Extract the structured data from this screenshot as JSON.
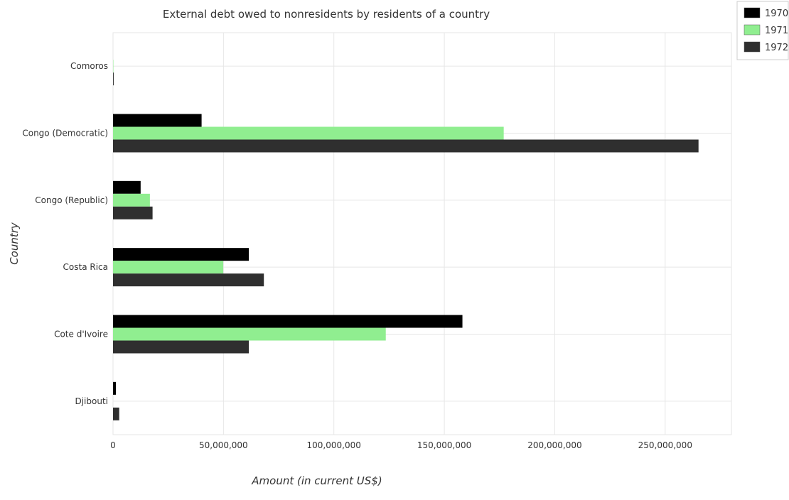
{
  "chart_data": {
    "type": "bar",
    "orientation": "horizontal",
    "title": "External debt owed to nonresidents by residents of a country",
    "xlabel": "Amount (in current US$)",
    "ylabel": "Country",
    "categories": [
      "Comoros",
      "Congo (Democratic)",
      "Congo (Republic)",
      "Costa Rica",
      "Cote d'Ivoire",
      "Djibouti"
    ],
    "series": [
      {
        "name": "1970",
        "color": "#000000",
        "values": [
          0,
          40100000,
          12500000,
          61500000,
          158200000,
          1300000
        ]
      },
      {
        "name": "1971",
        "color": "#90ee90",
        "values": [
          150000,
          176900000,
          16700000,
          49900000,
          123500000,
          0
        ]
      },
      {
        "name": "1972",
        "color": "#2f2f2f",
        "values": [
          300000,
          265100000,
          17900000,
          68300000,
          61500000,
          2800000
        ]
      }
    ],
    "xlim": [
      0,
      280000000
    ],
    "xticks": [
      0,
      50000000,
      100000000,
      150000000,
      200000000,
      250000000
    ],
    "xtick_labels": [
      "0",
      "50,000,000",
      "100,000,000",
      "150,000,000",
      "200,000,000",
      "250,000,000"
    ],
    "grid": true,
    "legend_position": "top-right"
  }
}
